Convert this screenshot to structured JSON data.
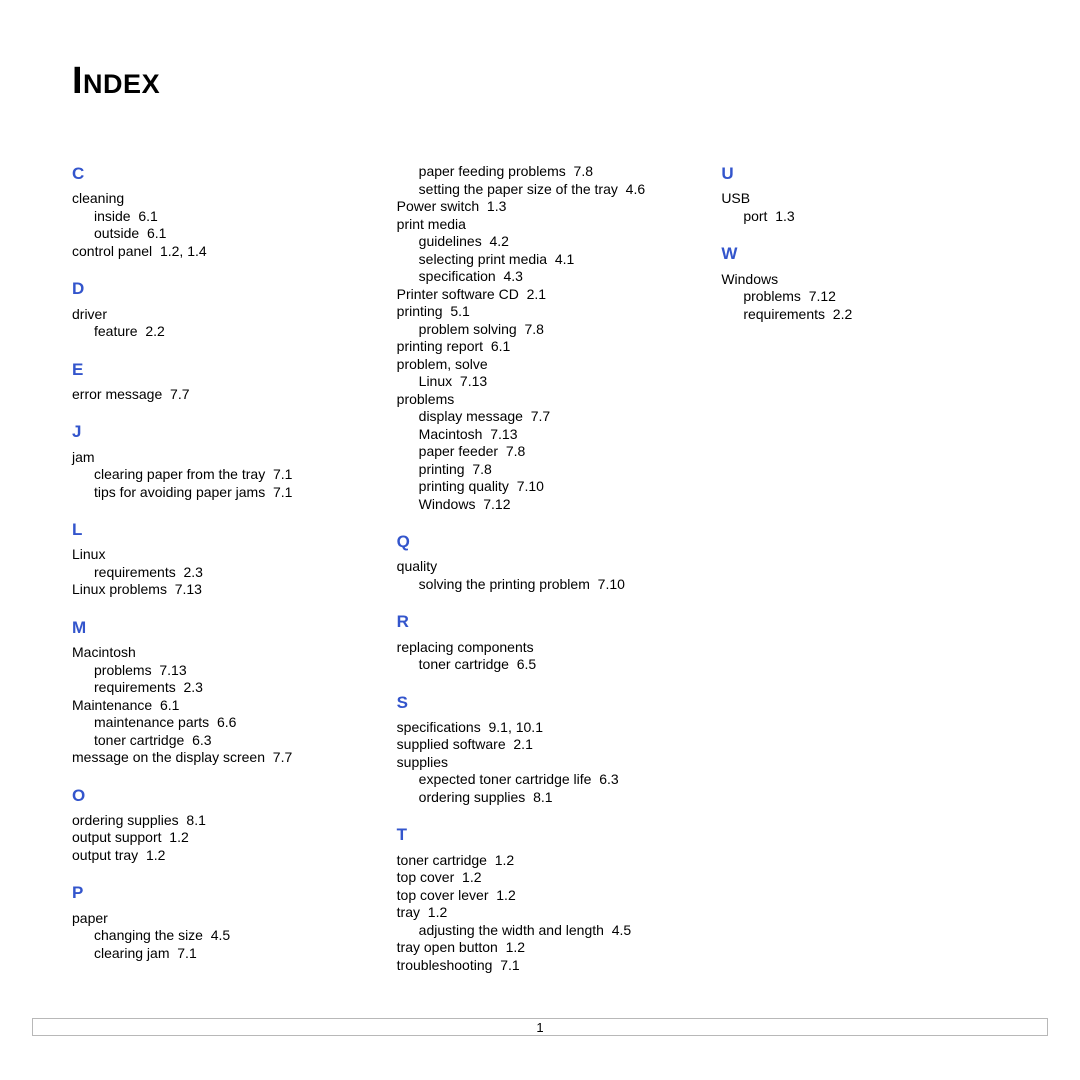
{
  "page": {
    "title": "Index",
    "page_number": "1",
    "colors": {
      "heading_blue": "#3355cc",
      "text": "#000000",
      "border": "#b8b8b8",
      "bg": "#ffffff"
    },
    "fonts": {
      "title_size_pt": 30,
      "letter_size_pt": 13,
      "body_size_pt": 11
    },
    "groups": [
      {
        "letter": "C",
        "entries": [
          {
            "level": 0,
            "term": "cleaning"
          },
          {
            "level": 1,
            "term": "inside",
            "refs": "6.1"
          },
          {
            "level": 1,
            "term": "outside",
            "refs": "6.1"
          },
          {
            "level": 0,
            "term": "control panel",
            "refs": "1.2, 1.4"
          }
        ]
      },
      {
        "letter": "D",
        "entries": [
          {
            "level": 0,
            "term": "driver"
          },
          {
            "level": 1,
            "term": "feature",
            "refs": "2.2"
          }
        ]
      },
      {
        "letter": "E",
        "entries": [
          {
            "level": 0,
            "term": "error message",
            "refs": "7.7"
          }
        ]
      },
      {
        "letter": "J",
        "entries": [
          {
            "level": 0,
            "term": "jam"
          },
          {
            "level": 1,
            "term": "clearing paper from the tray",
            "refs": "7.1"
          },
          {
            "level": 1,
            "term": "tips for avoiding paper jams",
            "refs": "7.1"
          }
        ]
      },
      {
        "letter": "L",
        "entries": [
          {
            "level": 0,
            "term": "Linux"
          },
          {
            "level": 1,
            "term": "requirements",
            "refs": "2.3"
          },
          {
            "level": 0,
            "term": "Linux problems",
            "refs": "7.13"
          }
        ]
      },
      {
        "letter": "M",
        "entries": [
          {
            "level": 0,
            "term": "Macintosh"
          },
          {
            "level": 1,
            "term": "problems",
            "refs": "7.13"
          },
          {
            "level": 1,
            "term": "requirements",
            "refs": "2.3"
          },
          {
            "level": 0,
            "term": "Maintenance",
            "refs": "6.1"
          },
          {
            "level": 1,
            "term": "maintenance parts",
            "refs": "6.6"
          },
          {
            "level": 1,
            "term": "toner cartridge",
            "refs": "6.3"
          },
          {
            "level": 0,
            "term": "message on the display screen",
            "refs": "7.7"
          }
        ]
      },
      {
        "letter": "O",
        "entries": [
          {
            "level": 0,
            "term": "ordering supplies",
            "refs": "8.1"
          },
          {
            "level": 0,
            "term": "output support",
            "refs": "1.2"
          },
          {
            "level": 0,
            "term": "output tray",
            "refs": "1.2"
          }
        ]
      },
      {
        "letter": "P",
        "entries": [
          {
            "level": 0,
            "term": "paper"
          },
          {
            "level": 1,
            "term": "changing the size",
            "refs": "4.5"
          },
          {
            "level": 1,
            "term": "clearing jam",
            "refs": "7.1"
          },
          {
            "level": 1,
            "term": "paper feeding problems",
            "refs": "7.8"
          },
          {
            "level": 1,
            "term": "setting the paper size of the tray",
            "refs": "4.6"
          },
          {
            "level": 0,
            "term": "Power switch",
            "refs": "1.3"
          },
          {
            "level": 0,
            "term": "print media"
          },
          {
            "level": 1,
            "term": "guidelines",
            "refs": "4.2"
          },
          {
            "level": 1,
            "term": "selecting print media",
            "refs": "4.1"
          },
          {
            "level": 1,
            "term": "specification",
            "refs": "4.3"
          },
          {
            "level": 0,
            "term": "Printer software CD",
            "refs": "2.1"
          },
          {
            "level": 0,
            "term": "printing",
            "refs": "5.1"
          },
          {
            "level": 1,
            "term": "problem solving",
            "refs": "7.8"
          },
          {
            "level": 0,
            "term": "printing report",
            "refs": "6.1"
          },
          {
            "level": 0,
            "term": "problem, solve"
          },
          {
            "level": 1,
            "term": "Linux",
            "refs": "7.13"
          },
          {
            "level": 0,
            "term": "problems"
          },
          {
            "level": 1,
            "term": "display message",
            "refs": "7.7"
          },
          {
            "level": 1,
            "term": "Macintosh",
            "refs": "7.13"
          },
          {
            "level": 1,
            "term": "paper feeder",
            "refs": "7.8"
          },
          {
            "level": 1,
            "term": "printing",
            "refs": "7.8"
          },
          {
            "level": 1,
            "term": "printing quality",
            "refs": "7.10"
          },
          {
            "level": 1,
            "term": "Windows",
            "refs": "7.12"
          }
        ]
      },
      {
        "letter": "Q",
        "entries": [
          {
            "level": 0,
            "term": "quality"
          },
          {
            "level": 1,
            "term": "solving the printing problem",
            "refs": "7.10"
          }
        ]
      },
      {
        "letter": "R",
        "entries": [
          {
            "level": 0,
            "term": "replacing components"
          },
          {
            "level": 1,
            "term": "toner cartridge",
            "refs": "6.5"
          }
        ]
      },
      {
        "letter": "S",
        "entries": [
          {
            "level": 0,
            "term": "specifications",
            "refs": "9.1, 10.1"
          },
          {
            "level": 0,
            "term": "supplied software",
            "refs": "2.1"
          },
          {
            "level": 0,
            "term": "supplies"
          },
          {
            "level": 1,
            "term": "expected toner cartridge life",
            "refs": "6.3"
          },
          {
            "level": 1,
            "term": "ordering supplies",
            "refs": "8.1"
          }
        ]
      },
      {
        "letter": "T",
        "entries": [
          {
            "level": 0,
            "term": "toner cartridge",
            "refs": "1.2"
          },
          {
            "level": 0,
            "term": "top cover",
            "refs": "1.2"
          },
          {
            "level": 0,
            "term": "top cover lever",
            "refs": "1.2"
          },
          {
            "level": 0,
            "term": "tray",
            "refs": "1.2"
          },
          {
            "level": 1,
            "term": "adjusting the width and length",
            "refs": "4.5"
          },
          {
            "level": 0,
            "term": "tray open button",
            "refs": "1.2"
          },
          {
            "level": 0,
            "term": "troubleshooting",
            "refs": "7.1"
          }
        ]
      },
      {
        "letter": "U",
        "entries": [
          {
            "level": 0,
            "term": "USB"
          },
          {
            "level": 1,
            "term": "port",
            "refs": "1.3"
          }
        ]
      },
      {
        "letter": "W",
        "entries": [
          {
            "level": 0,
            "term": "Windows"
          },
          {
            "level": 1,
            "term": "problems",
            "refs": "7.12"
          },
          {
            "level": 1,
            "term": "requirements",
            "refs": "2.2"
          }
        ]
      }
    ]
  }
}
